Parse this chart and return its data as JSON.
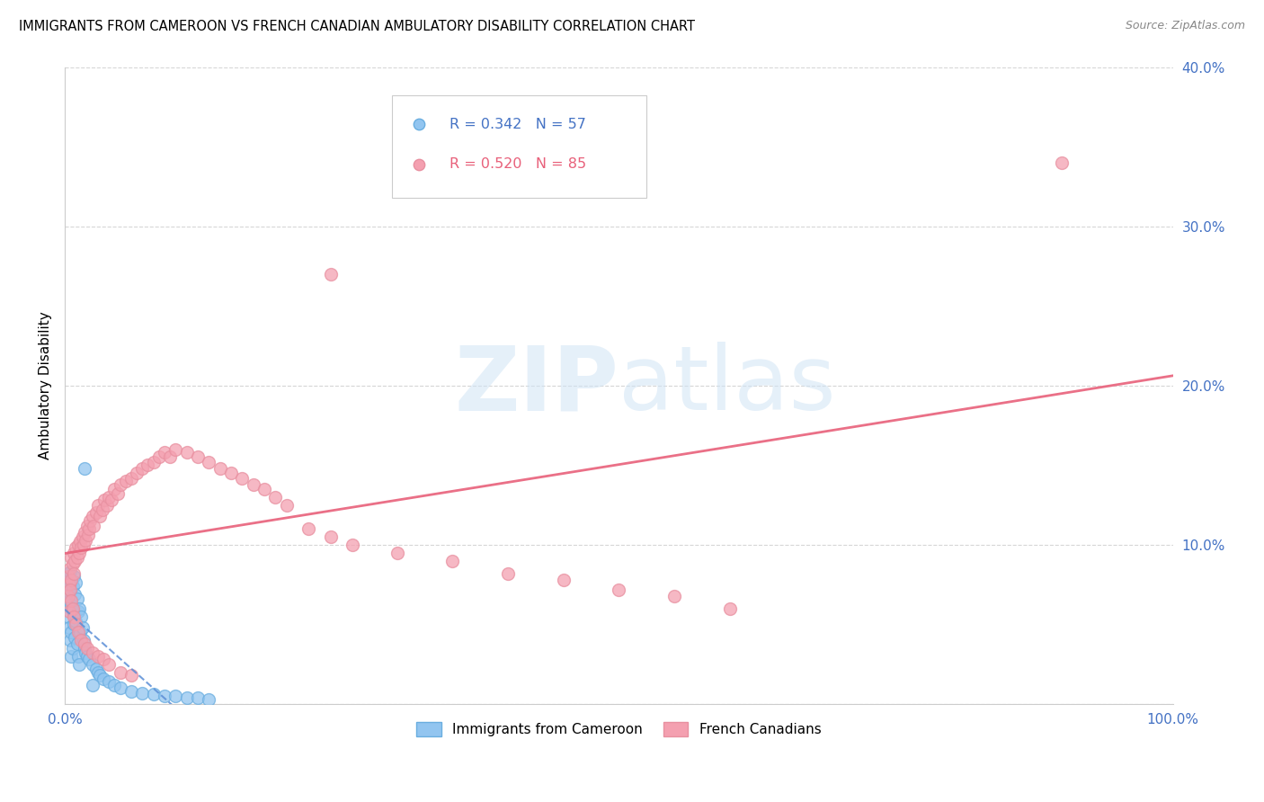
{
  "title": "IMMIGRANTS FROM CAMEROON VS FRENCH CANADIAN AMBULATORY DISABILITY CORRELATION CHART",
  "source": "Source: ZipAtlas.com",
  "ylabel": "Ambulatory Disability",
  "blue_R": 0.342,
  "blue_N": 57,
  "pink_R": 0.52,
  "pink_N": 85,
  "blue_color": "#92C5F0",
  "pink_color": "#F4A0B0",
  "blue_edge_color": "#6AAEE0",
  "pink_edge_color": "#E890A0",
  "blue_line_color": "#5B8ED6",
  "pink_line_color": "#E8607A",
  "tick_color": "#4472C4",
  "watermark_color": "#D0E4F5",
  "blue_label": "Immigrants from Cameroon",
  "pink_label": "French Canadians",
  "blue_x": [
    0.001,
    0.002,
    0.002,
    0.003,
    0.003,
    0.003,
    0.004,
    0.004,
    0.004,
    0.005,
    0.005,
    0.005,
    0.006,
    0.006,
    0.006,
    0.006,
    0.007,
    0.007,
    0.007,
    0.008,
    0.008,
    0.009,
    0.009,
    0.01,
    0.01,
    0.011,
    0.011,
    0.012,
    0.012,
    0.013,
    0.013,
    0.014,
    0.015,
    0.016,
    0.017,
    0.018,
    0.019,
    0.02,
    0.022,
    0.025,
    0.028,
    0.03,
    0.032,
    0.035,
    0.04,
    0.045,
    0.05,
    0.06,
    0.07,
    0.08,
    0.09,
    0.1,
    0.11,
    0.12,
    0.13,
    0.018,
    0.025
  ],
  "blue_y": [
    0.075,
    0.08,
    0.068,
    0.082,
    0.07,
    0.055,
    0.078,
    0.065,
    0.048,
    0.083,
    0.072,
    0.04,
    0.077,
    0.062,
    0.045,
    0.03,
    0.074,
    0.058,
    0.035,
    0.08,
    0.05,
    0.069,
    0.042,
    0.076,
    0.052,
    0.066,
    0.038,
    0.058,
    0.03,
    0.06,
    0.025,
    0.045,
    0.055,
    0.048,
    0.04,
    0.035,
    0.032,
    0.03,
    0.028,
    0.025,
    0.022,
    0.02,
    0.018,
    0.016,
    0.014,
    0.012,
    0.01,
    0.008,
    0.007,
    0.006,
    0.005,
    0.005,
    0.004,
    0.004,
    0.003,
    0.148,
    0.012
  ],
  "pink_x": [
    0.003,
    0.004,
    0.005,
    0.006,
    0.006,
    0.007,
    0.008,
    0.008,
    0.009,
    0.01,
    0.011,
    0.012,
    0.013,
    0.014,
    0.015,
    0.016,
    0.017,
    0.018,
    0.019,
    0.02,
    0.021,
    0.022,
    0.023,
    0.025,
    0.026,
    0.028,
    0.03,
    0.032,
    0.034,
    0.036,
    0.038,
    0.04,
    0.042,
    0.045,
    0.048,
    0.05,
    0.055,
    0.06,
    0.065,
    0.07,
    0.075,
    0.08,
    0.085,
    0.09,
    0.095,
    0.1,
    0.11,
    0.12,
    0.13,
    0.14,
    0.15,
    0.16,
    0.17,
    0.18,
    0.19,
    0.2,
    0.22,
    0.24,
    0.26,
    0.3,
    0.35,
    0.4,
    0.45,
    0.5,
    0.55,
    0.6,
    0.003,
    0.004,
    0.005,
    0.006,
    0.007,
    0.008,
    0.01,
    0.012,
    0.015,
    0.018,
    0.02,
    0.025,
    0.03,
    0.035,
    0.04,
    0.05,
    0.06,
    0.9,
    0.24
  ],
  "pink_y": [
    0.08,
    0.075,
    0.085,
    0.078,
    0.092,
    0.088,
    0.082,
    0.095,
    0.09,
    0.098,
    0.092,
    0.1,
    0.095,
    0.102,
    0.098,
    0.105,
    0.1,
    0.108,
    0.103,
    0.112,
    0.106,
    0.11,
    0.115,
    0.118,
    0.112,
    0.12,
    0.125,
    0.118,
    0.122,
    0.128,
    0.125,
    0.13,
    0.128,
    0.135,
    0.132,
    0.138,
    0.14,
    0.142,
    0.145,
    0.148,
    0.15,
    0.152,
    0.155,
    0.158,
    0.155,
    0.16,
    0.158,
    0.155,
    0.152,
    0.148,
    0.145,
    0.142,
    0.138,
    0.135,
    0.13,
    0.125,
    0.11,
    0.105,
    0.1,
    0.095,
    0.09,
    0.082,
    0.078,
    0.072,
    0.068,
    0.06,
    0.068,
    0.058,
    0.072,
    0.065,
    0.06,
    0.055,
    0.05,
    0.045,
    0.04,
    0.038,
    0.035,
    0.032,
    0.03,
    0.028,
    0.025,
    0.02,
    0.018,
    0.34,
    0.27
  ]
}
